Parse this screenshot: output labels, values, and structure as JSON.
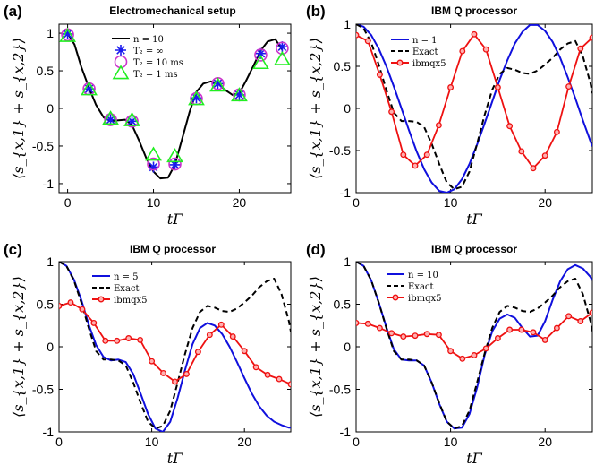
{
  "chart_data": [
    {
      "panel": "(a)",
      "title": "Electromechanical setup",
      "type": "line",
      "xlabel": "tΓ",
      "ylabel": "⟨s_{x,1} + s_{x,2}⟩",
      "xlim": [
        -1,
        26
      ],
      "ylim": [
        -1.12,
        1.12
      ],
      "xticks": [
        0,
        10,
        20
      ],
      "yticks": [
        -1,
        -0.5,
        0,
        0.5,
        1
      ],
      "xtick_labels": [
        "0",
        "10",
        "20"
      ],
      "ytick_labels": [
        "-1",
        "-0.5",
        "0",
        "0.5",
        "1"
      ],
      "legend_position": "top-right",
      "series": [
        {
          "name": "n = 10",
          "style": "line",
          "color": "#000000",
          "x": [
            0,
            0.8,
            1.6,
            2.5,
            3.3,
            4.2,
            5.0,
            5.8,
            6.7,
            7.5,
            8.3,
            9.2,
            10.0,
            10.8,
            11.7,
            12.5,
            13.3,
            14.2,
            15.0,
            15.8,
            16.7,
            17.5,
            18.3,
            19.2,
            20.0,
            20.8,
            21.7,
            22.5,
            23.3,
            24.2,
            25.0
          ],
          "y": [
            1.0,
            0.85,
            0.55,
            0.27,
            0.05,
            -0.12,
            -0.17,
            -0.16,
            -0.15,
            -0.22,
            -0.42,
            -0.67,
            -0.84,
            -0.93,
            -0.92,
            -0.75,
            -0.42,
            -0.05,
            0.22,
            0.33,
            0.36,
            0.33,
            0.25,
            0.18,
            0.2,
            0.37,
            0.58,
            0.77,
            0.89,
            0.92,
            0.78
          ]
        },
        {
          "name": "T₂ = ∞",
          "style": "star",
          "color": "#1a1aee",
          "x": [
            0,
            2.5,
            5.0,
            7.5,
            10.0,
            12.5,
            15.0,
            17.5,
            20.0,
            22.5,
            25.0
          ],
          "y": [
            0.99,
            0.26,
            -0.15,
            -0.17,
            -0.78,
            -0.75,
            0.14,
            0.33,
            0.18,
            0.73,
            0.82
          ]
        },
        {
          "name": "T₂ = 10 ms",
          "style": "circle",
          "color": "#cc33cc",
          "x": [
            0,
            2.5,
            5.0,
            7.5,
            10.0,
            12.5,
            15.0,
            17.5,
            20.0,
            22.5,
            25.0
          ],
          "y": [
            0.98,
            0.26,
            -0.15,
            -0.17,
            -0.74,
            -0.74,
            0.13,
            0.33,
            0.18,
            0.71,
            0.8
          ]
        },
        {
          "name": "T₂ = 1 ms",
          "style": "triangle",
          "color": "#22ee22",
          "x": [
            0,
            2.5,
            5.0,
            7.5,
            10.0,
            12.5,
            15.0,
            17.5,
            20.0,
            22.5,
            25.0
          ],
          "y": [
            0.96,
            0.25,
            -0.14,
            -0.16,
            -0.62,
            -0.64,
            0.12,
            0.3,
            0.17,
            0.6,
            0.65
          ]
        }
      ]
    },
    {
      "panel": "(b)",
      "title": "IBM Q processor",
      "type": "line",
      "xlabel": "tΓ",
      "ylabel": "⟨s_{x,1} + s_{x,2}⟩",
      "xlim": [
        0,
        25
      ],
      "ylim": [
        -1,
        1
      ],
      "xticks": [
        0,
        10,
        20
      ],
      "yticks": [
        -1,
        -0.5,
        0,
        0.5,
        1
      ],
      "xtick_labels": [
        "0",
        "10",
        "20"
      ],
      "ytick_labels": [
        "-1",
        "-0.5",
        "0",
        "0.5",
        "1"
      ],
      "legend_position": "top-left",
      "series": [
        {
          "name": "n = 1",
          "style": "line",
          "color": "#1010dd",
          "x": [
            0,
            0.8,
            1.6,
            2.4,
            3.2,
            4.0,
            4.8,
            5.6,
            6.4,
            7.2,
            8.0,
            8.8,
            9.6,
            10.4,
            11.2,
            12.0,
            12.8,
            13.6,
            14.4,
            15.2,
            16.0,
            16.8,
            17.6,
            18.4,
            19.2,
            20.0,
            20.8,
            21.6,
            22.4,
            23.2,
            24.0,
            24.8,
            25.0
          ],
          "y": [
            1.0,
            0.97,
            0.87,
            0.71,
            0.5,
            0.26,
            0.0,
            -0.26,
            -0.51,
            -0.72,
            -0.88,
            -0.98,
            -1.0,
            -0.96,
            -0.84,
            -0.66,
            -0.43,
            -0.18,
            0.08,
            0.34,
            0.57,
            0.77,
            0.91,
            0.99,
            0.99,
            0.92,
            0.79,
            0.6,
            0.37,
            0.12,
            -0.14,
            -0.39,
            -0.45
          ]
        },
        {
          "name": "Exact",
          "style": "dashed",
          "color": "#000000",
          "x": [
            0,
            0.8,
            1.6,
            2.4,
            3.2,
            4.0,
            4.8,
            5.6,
            6.4,
            7.2,
            8.0,
            8.8,
            9.6,
            10.4,
            11.2,
            12.0,
            12.8,
            13.6,
            14.4,
            15.2,
            16.0,
            16.8,
            17.6,
            18.4,
            19.2,
            20.0,
            20.8,
            21.6,
            22.4,
            23.2,
            24.0,
            24.8,
            25.0
          ],
          "y": [
            1.0,
            0.95,
            0.78,
            0.52,
            0.22,
            -0.05,
            -0.15,
            -0.15,
            -0.16,
            -0.22,
            -0.42,
            -0.66,
            -0.88,
            -0.96,
            -0.93,
            -0.75,
            -0.42,
            -0.08,
            0.22,
            0.41,
            0.48,
            0.46,
            0.42,
            0.41,
            0.45,
            0.52,
            0.6,
            0.7,
            0.77,
            0.8,
            0.62,
            0.3,
            0.18
          ]
        },
        {
          "name": "ibmqx5",
          "style": "line-marker",
          "color": "#ee1111",
          "x": [
            0,
            1.25,
            2.5,
            3.75,
            5.0,
            6.25,
            7.5,
            8.75,
            10.0,
            11.25,
            12.5,
            13.75,
            15.0,
            16.25,
            17.5,
            18.75,
            20.0,
            21.25,
            22.5,
            23.75,
            25.0
          ],
          "y": [
            0.87,
            0.8,
            0.4,
            -0.04,
            -0.55,
            -0.68,
            -0.55,
            -0.2,
            0.25,
            0.68,
            0.88,
            0.7,
            0.25,
            -0.21,
            -0.51,
            -0.71,
            -0.56,
            -0.28,
            0.26,
            0.71,
            0.84
          ]
        }
      ]
    },
    {
      "panel": "(c)",
      "title": "IBM Q processor",
      "type": "line",
      "xlabel": "tΓ",
      "ylabel": "⟨s_{x,1} + s_{x,2}⟩",
      "xlim": [
        0,
        25
      ],
      "ylim": [
        -1,
        1
      ],
      "xticks": [
        0,
        10,
        20
      ],
      "yticks": [
        -1,
        -0.5,
        0,
        0.5,
        1
      ],
      "xtick_labels": [
        "0",
        "10",
        "20"
      ],
      "ytick_labels": [
        "-1",
        "-0.5",
        "0",
        "0.5",
        "1"
      ],
      "legend_position": "top-center",
      "series": [
        {
          "name": "n = 5",
          "style": "line",
          "color": "#1010dd",
          "x": [
            0,
            0.8,
            1.6,
            2.4,
            3.2,
            4.0,
            4.8,
            5.6,
            6.4,
            7.2,
            8.0,
            8.8,
            9.6,
            10.4,
            11.2,
            12.0,
            12.8,
            13.6,
            14.4,
            15.2,
            16.0,
            16.8,
            17.6,
            18.4,
            19.2,
            20.0,
            20.8,
            21.6,
            22.4,
            23.2,
            24.0,
            24.8,
            25.0
          ],
          "y": [
            1.0,
            0.95,
            0.79,
            0.55,
            0.26,
            0.02,
            -0.12,
            -0.16,
            -0.15,
            -0.18,
            -0.32,
            -0.55,
            -0.79,
            -0.96,
            -1.0,
            -0.88,
            -0.6,
            -0.27,
            0.03,
            0.22,
            0.28,
            0.25,
            0.15,
            0.0,
            -0.18,
            -0.37,
            -0.55,
            -0.7,
            -0.81,
            -0.88,
            -0.92,
            -0.95,
            -0.95
          ]
        },
        {
          "name": "Exact",
          "style": "dashed",
          "color": "#000000",
          "x": [
            0,
            0.8,
            1.6,
            2.4,
            3.2,
            4.0,
            4.8,
            5.6,
            6.4,
            7.2,
            8.0,
            8.8,
            9.6,
            10.4,
            11.2,
            12.0,
            12.8,
            13.6,
            14.4,
            15.2,
            16.0,
            16.8,
            17.6,
            18.4,
            19.2,
            20.0,
            20.8,
            21.6,
            22.4,
            23.2,
            24.0,
            24.8,
            25.0
          ],
          "y": [
            1.0,
            0.95,
            0.78,
            0.52,
            0.22,
            -0.05,
            -0.15,
            -0.15,
            -0.16,
            -0.22,
            -0.42,
            -0.66,
            -0.88,
            -0.96,
            -0.93,
            -0.75,
            -0.42,
            -0.08,
            0.22,
            0.41,
            0.48,
            0.46,
            0.42,
            0.41,
            0.45,
            0.52,
            0.6,
            0.7,
            0.77,
            0.8,
            0.62,
            0.3,
            0.18
          ]
        },
        {
          "name": "ibmqx5",
          "style": "line-marker",
          "color": "#ee1111",
          "x": [
            0,
            1.25,
            2.5,
            3.75,
            5.0,
            6.25,
            7.5,
            8.75,
            10.0,
            11.25,
            12.5,
            13.75,
            15.0,
            16.25,
            17.5,
            18.75,
            20.0,
            21.25,
            22.5,
            23.75,
            25.0
          ],
          "y": [
            0.48,
            0.52,
            0.44,
            0.28,
            0.07,
            0.07,
            0.1,
            0.08,
            -0.17,
            -0.31,
            -0.41,
            -0.32,
            -0.06,
            0.14,
            0.26,
            0.12,
            -0.05,
            -0.24,
            -0.33,
            -0.38,
            -0.44
          ]
        }
      ]
    },
    {
      "panel": "(d)",
      "title": "IBM Q processor",
      "type": "line",
      "xlabel": "tΓ",
      "ylabel": "⟨s_{x,1} + s_{x,2}⟩",
      "xlim": [
        0,
        25
      ],
      "ylim": [
        -1,
        1
      ],
      "xticks": [
        0,
        10,
        20
      ],
      "yticks": [
        -1,
        -0.5,
        0,
        0.5,
        1
      ],
      "xtick_labels": [
        "0",
        "10",
        "20"
      ],
      "ytick_labels": [
        "-1",
        "-0.5",
        "0",
        "0.5",
        "1"
      ],
      "legend_position": "top-center",
      "series": [
        {
          "name": "n = 10",
          "style": "line",
          "color": "#1010dd",
          "x": [
            0,
            0.8,
            1.6,
            2.4,
            3.2,
            4.0,
            4.8,
            5.6,
            6.4,
            7.2,
            8.0,
            8.8,
            9.6,
            10.4,
            11.2,
            12.0,
            12.8,
            13.6,
            14.4,
            15.2,
            16.0,
            16.8,
            17.6,
            18.4,
            19.2,
            20.0,
            20.8,
            21.6,
            22.4,
            23.2,
            24.0,
            24.8,
            25.0
          ],
          "y": [
            1.0,
            0.95,
            0.78,
            0.52,
            0.23,
            -0.03,
            -0.15,
            -0.16,
            -0.16,
            -0.22,
            -0.42,
            -0.67,
            -0.88,
            -0.96,
            -0.95,
            -0.79,
            -0.48,
            -0.1,
            0.18,
            0.33,
            0.38,
            0.34,
            0.22,
            0.12,
            0.13,
            0.3,
            0.55,
            0.77,
            0.91,
            0.96,
            0.92,
            0.82,
            0.78
          ]
        },
        {
          "name": "Exact",
          "style": "dashed",
          "color": "#000000",
          "x": [
            0,
            0.8,
            1.6,
            2.4,
            3.2,
            4.0,
            4.8,
            5.6,
            6.4,
            7.2,
            8.0,
            8.8,
            9.6,
            10.4,
            11.2,
            12.0,
            12.8,
            13.6,
            14.4,
            15.2,
            16.0,
            16.8,
            17.6,
            18.4,
            19.2,
            20.0,
            20.8,
            21.6,
            22.4,
            23.2,
            24.0,
            24.8,
            25.0
          ],
          "y": [
            1.0,
            0.95,
            0.78,
            0.52,
            0.22,
            -0.05,
            -0.15,
            -0.15,
            -0.16,
            -0.22,
            -0.42,
            -0.66,
            -0.88,
            -0.96,
            -0.93,
            -0.75,
            -0.42,
            -0.08,
            0.22,
            0.41,
            0.48,
            0.46,
            0.42,
            0.41,
            0.45,
            0.52,
            0.6,
            0.7,
            0.77,
            0.8,
            0.62,
            0.3,
            0.18
          ]
        },
        {
          "name": "ibmqx5",
          "style": "line-marker",
          "color": "#ee1111",
          "x": [
            0,
            1.25,
            2.5,
            3.75,
            5.0,
            6.25,
            7.5,
            8.75,
            10.0,
            11.25,
            12.5,
            13.75,
            15.0,
            16.25,
            17.5,
            18.75,
            20.0,
            21.25,
            22.5,
            23.75,
            25.0
          ],
          "y": [
            0.28,
            0.27,
            0.22,
            0.16,
            0.12,
            0.13,
            0.15,
            0.14,
            -0.05,
            -0.14,
            -0.1,
            -0.02,
            0.1,
            0.2,
            0.2,
            0.17,
            0.08,
            0.22,
            0.36,
            0.3,
            0.4
          ]
        }
      ]
    }
  ]
}
